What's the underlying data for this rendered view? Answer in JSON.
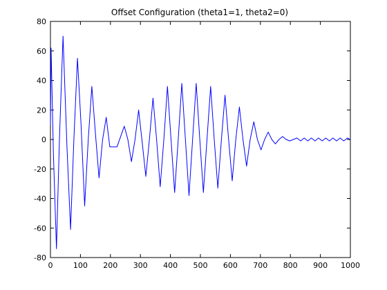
{
  "chart_data": {
    "type": "line",
    "title": "Offset Configuration (theta1=1, theta2=0)",
    "xlabel": "",
    "ylabel": "",
    "xlim": [
      0,
      1000
    ],
    "ylim": [
      -80,
      80
    ],
    "xticks": [
      0,
      100,
      200,
      300,
      400,
      500,
      600,
      700,
      800,
      900,
      1000
    ],
    "yticks": [
      -80,
      -60,
      -40,
      -20,
      0,
      20,
      40,
      60,
      80
    ],
    "xtick_labels": [
      "0",
      "100",
      "200",
      "300",
      "400",
      "500",
      "600",
      "700",
      "800",
      "900",
      "1000"
    ],
    "ytick_labels": [
      "-80",
      "-60",
      "-40",
      "-20",
      "0",
      "20",
      "40",
      "60",
      "80"
    ],
    "grid": false,
    "legend": "none",
    "series_color": "#0000ff",
    "axis_color": "#000000",
    "background": "#ffffff",
    "series": [
      {
        "x": [
          0,
          2,
          10,
          20,
          30,
          42,
          55,
          67,
          78,
          90,
          102,
          114,
          126,
          138,
          150,
          162,
          174,
          186,
          198,
          210,
          222,
          234,
          246,
          258,
          270,
          282,
          294,
          306,
          318,
          330,
          342,
          354,
          366,
          378,
          390,
          402,
          414,
          426,
          438,
          450,
          462,
          474,
          486,
          498,
          510,
          522,
          534,
          546,
          558,
          570,
          582,
          594,
          606,
          618,
          630,
          642,
          654,
          666,
          678,
          690,
          702,
          714,
          726,
          738,
          750,
          762,
          774,
          786,
          798,
          810,
          822,
          834,
          846,
          858,
          870,
          882,
          894,
          906,
          918,
          930,
          942,
          954,
          966,
          978,
          990,
          1000
        ],
        "y": [
          10,
          62,
          -10,
          -74,
          0,
          70,
          -5,
          -61,
          0,
          55,
          10,
          -45,
          0,
          36,
          4,
          -26,
          0,
          15,
          -5,
          -5,
          -5,
          2,
          9,
          0,
          -15,
          0,
          20,
          -2,
          -25,
          0,
          28,
          0,
          -32,
          0,
          36,
          0,
          -36,
          0,
          38,
          0,
          -38,
          0,
          38,
          0,
          -36,
          0,
          36,
          0,
          -33,
          0,
          30,
          0,
          -28,
          0,
          22,
          0,
          -18,
          0,
          12,
          0,
          -7,
          0,
          5,
          0,
          -3,
          0,
          2,
          0,
          -1,
          0,
          1,
          -1,
          1,
          -1,
          1,
          -1,
          1,
          -1,
          1,
          -1,
          1,
          -1,
          1,
          -1,
          1,
          0
        ]
      }
    ]
  }
}
